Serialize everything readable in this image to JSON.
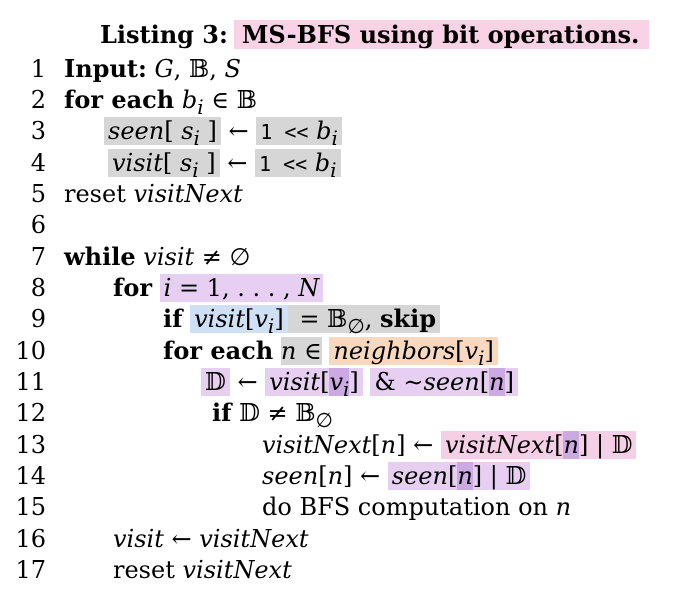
{
  "caption": {
    "label": "Listing 3:",
    "text": "MS-BFS using bit operations."
  },
  "lines": [
    {
      "num": "1",
      "text": "Input: G, 𝔹, S"
    },
    {
      "num": "2",
      "text": "for each bᵢ ∈ 𝔹"
    },
    {
      "num": "3",
      "text": "seen[ sᵢ ] ← 1 << bᵢ"
    },
    {
      "num": "4",
      "text": "visit[ sᵢ ] ← 1 << bᵢ"
    },
    {
      "num": "5",
      "text": "reset visitNext"
    },
    {
      "num": "6",
      "text": ""
    },
    {
      "num": "7",
      "text": "while visit ≠ ∅"
    },
    {
      "num": "8",
      "text": "for i = 1, . . . , N"
    },
    {
      "num": "9",
      "text": "if visit[vᵢ] = 𝔹∅, skip"
    },
    {
      "num": "10",
      "text": "for each n ∈ neighbors[vᵢ]"
    },
    {
      "num": "11",
      "text": "𝔻 ← visit[vᵢ] & ∼seen[n]"
    },
    {
      "num": "12",
      "text": "if 𝔻 ≠ 𝔹∅"
    },
    {
      "num": "13",
      "text": "visitNext[n] ← visitNext[n] | 𝔻"
    },
    {
      "num": "14",
      "text": "seen[n] ← seen[n] | 𝔻"
    },
    {
      "num": "15",
      "text": "do BFS computation on n"
    },
    {
      "num": "16",
      "text": "visit ← visitNext"
    },
    {
      "num": "17",
      "text": "reset visitNext"
    }
  ]
}
